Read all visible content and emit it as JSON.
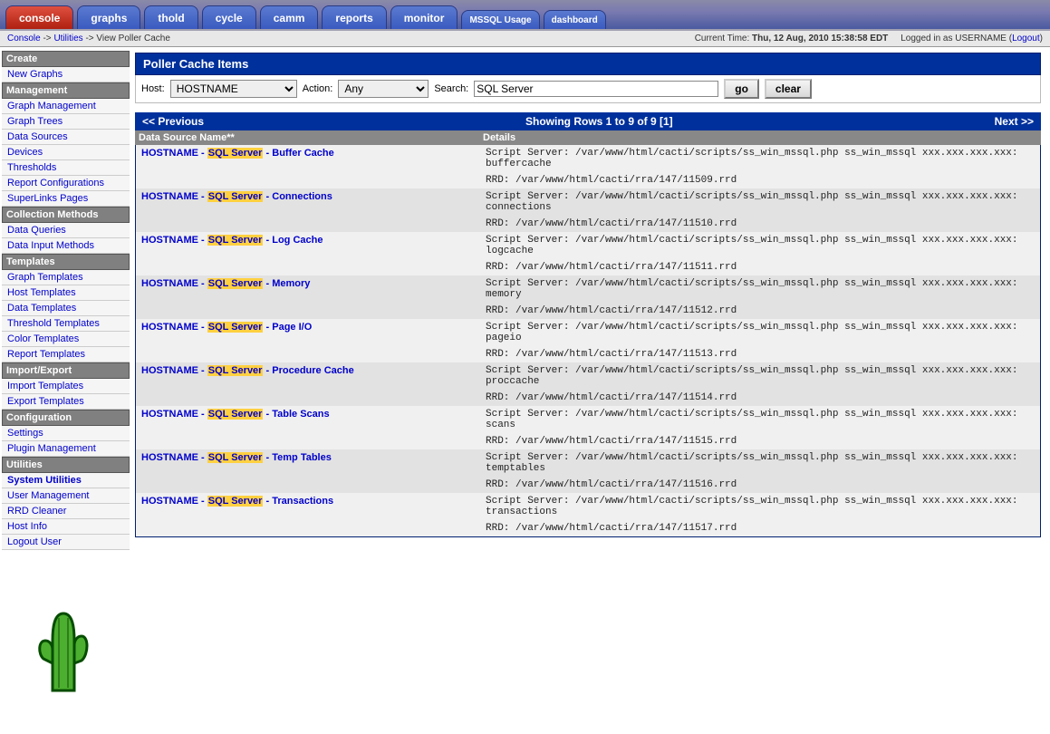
{
  "topnav": {
    "tabs": [
      {
        "label": "console",
        "active": true
      },
      {
        "label": "graphs"
      },
      {
        "label": "thold"
      },
      {
        "label": "cycle"
      },
      {
        "label": "camm"
      },
      {
        "label": "reports"
      },
      {
        "label": "monitor"
      },
      {
        "label": "MSSQL Usage",
        "small": true
      },
      {
        "label": "dashboard",
        "small": true
      }
    ]
  },
  "breadcrumb": {
    "parts": [
      "Console",
      "Utilities",
      "View Poller Cache"
    ],
    "sep": " -> ",
    "current_time_label": "Current Time:",
    "current_time": "Thu, 12 Aug, 2010 15:38:58 EDT",
    "logged_in_label": "Logged in as",
    "user": "USERNAME",
    "logout": "Logout"
  },
  "sidebar": {
    "groups": [
      {
        "header": "Create",
        "items": [
          {
            "label": "New Graphs"
          }
        ]
      },
      {
        "header": "Management",
        "items": [
          {
            "label": "Graph Management"
          },
          {
            "label": "Graph Trees"
          },
          {
            "label": "Data Sources"
          },
          {
            "label": "Devices"
          },
          {
            "label": "Thresholds"
          },
          {
            "label": "Report Configurations"
          },
          {
            "label": "SuperLinks Pages"
          }
        ]
      },
      {
        "header": "Collection Methods",
        "items": [
          {
            "label": "Data Queries"
          },
          {
            "label": "Data Input Methods"
          }
        ]
      },
      {
        "header": "Templates",
        "items": [
          {
            "label": "Graph Templates"
          },
          {
            "label": "Host Templates"
          },
          {
            "label": "Data Templates"
          },
          {
            "label": "Threshold Templates"
          },
          {
            "label": "Color Templates"
          },
          {
            "label": "Report Templates"
          }
        ]
      },
      {
        "header": "Import/Export",
        "items": [
          {
            "label": "Import Templates"
          },
          {
            "label": "Export Templates"
          }
        ]
      },
      {
        "header": "Configuration",
        "items": [
          {
            "label": "Settings"
          },
          {
            "label": "Plugin Management"
          }
        ]
      },
      {
        "header": "Utilities",
        "items": [
          {
            "label": "System Utilities",
            "selected": true
          },
          {
            "label": "User Management"
          },
          {
            "label": "RRD Cleaner"
          },
          {
            "label": "Host Info"
          },
          {
            "label": "Logout User"
          }
        ]
      }
    ]
  },
  "panel": {
    "title": "Poller Cache Items",
    "host_label": "Host:",
    "host_value": "HOSTNAME",
    "action_label": "Action:",
    "action_value": "Any",
    "search_label": "Search:",
    "search_value": "SQL Server",
    "go": "go",
    "clear": "clear"
  },
  "pager": {
    "prev": "<< Previous",
    "showing": "Showing Rows 1 to 9 of 9 [1]",
    "next": "Next >>"
  },
  "columns": {
    "c1": "Data Source Name**",
    "c2": "Details"
  },
  "highlight": "SQL Server",
  "rows": [
    {
      "host": "HOSTNAME",
      "suffix": "Buffer Cache",
      "script": "Script Server: /var/www/html/cacti/scripts/ss_win_mssql.php ss_win_mssql xxx.xxx.xxx.xxx: buffercache",
      "rrd": "RRD: /var/www/html/cacti/rra/147/11509.rrd"
    },
    {
      "host": "HOSTNAME",
      "suffix": "Connections",
      "script": "Script Server: /var/www/html/cacti/scripts/ss_win_mssql.php ss_win_mssql xxx.xxx.xxx.xxx: connections",
      "rrd": "RRD: /var/www/html/cacti/rra/147/11510.rrd"
    },
    {
      "host": "HOSTNAME",
      "suffix": "Log Cache",
      "script": "Script Server: /var/www/html/cacti/scripts/ss_win_mssql.php ss_win_mssql xxx.xxx.xxx.xxx: logcache",
      "rrd": "RRD: /var/www/html/cacti/rra/147/11511.rrd"
    },
    {
      "host": "HOSTNAME",
      "suffix": "Memory",
      "script": "Script Server: /var/www/html/cacti/scripts/ss_win_mssql.php ss_win_mssql xxx.xxx.xxx.xxx: memory",
      "rrd": "RRD: /var/www/html/cacti/rra/147/11512.rrd"
    },
    {
      "host": "HOSTNAME",
      "suffix": "Page I/O",
      "script": "Script Server: /var/www/html/cacti/scripts/ss_win_mssql.php ss_win_mssql xxx.xxx.xxx.xxx: pageio",
      "rrd": "RRD: /var/www/html/cacti/rra/147/11513.rrd"
    },
    {
      "host": "HOSTNAME",
      "suffix": "Procedure Cache",
      "script": "Script Server: /var/www/html/cacti/scripts/ss_win_mssql.php ss_win_mssql xxx.xxx.xxx.xxx: proccache",
      "rrd": "RRD: /var/www/html/cacti/rra/147/11514.rrd"
    },
    {
      "host": "HOSTNAME",
      "suffix": "Table Scans",
      "script": "Script Server: /var/www/html/cacti/scripts/ss_win_mssql.php ss_win_mssql xxx.xxx.xxx.xxx: scans",
      "rrd": "RRD: /var/www/html/cacti/rra/147/11515.rrd"
    },
    {
      "host": "HOSTNAME",
      "suffix": "Temp Tables",
      "script": "Script Server: /var/www/html/cacti/scripts/ss_win_mssql.php ss_win_mssql xxx.xxx.xxx.xxx: temptables",
      "rrd": "RRD: /var/www/html/cacti/rra/147/11516.rrd"
    },
    {
      "host": "HOSTNAME",
      "suffix": "Transactions",
      "script": "Script Server: /var/www/html/cacti/scripts/ss_win_mssql.php ss_win_mssql xxx.xxx.xxx.xxx: transactions",
      "rrd": "RRD: /var/www/html/cacti/rra/147/11517.rrd"
    }
  ],
  "colors": {
    "header_blue": "#00309c",
    "tab_active": "#c02a10",
    "tab_inactive": "#3a5ac0",
    "sidebar_header": "#808080",
    "row_even": "#f0f0f0",
    "row_odd": "#e2e2e2",
    "highlight": "#ffd040"
  }
}
